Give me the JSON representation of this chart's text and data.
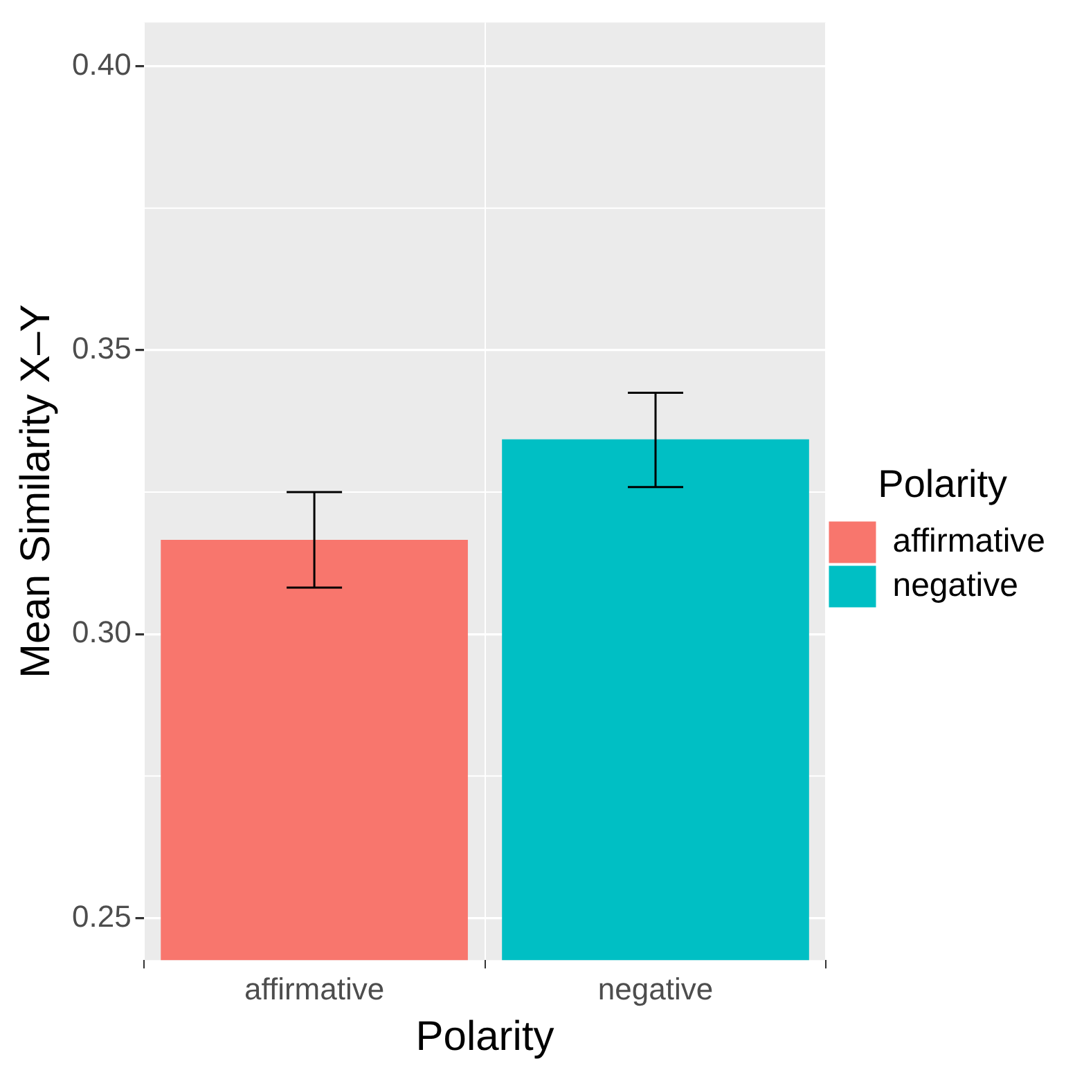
{
  "chart_data": {
    "type": "bar",
    "xlabel": "Polarity",
    "ylabel": "Mean Similarity X–Y",
    "legend_title": "Polarity",
    "categories": [
      "affirmative",
      "negative"
    ],
    "series": [
      {
        "name": "affirmative",
        "color": "#f8766d",
        "values": [
          0.3166,
          null
        ],
        "errors": [
          [
            0.3082,
            0.325
          ],
          null
        ]
      },
      {
        "name": "negative",
        "color": "#00bfc4",
        "values": [
          null,
          0.3343
        ],
        "errors": [
          null,
          [
            0.3259,
            0.3425
          ]
        ]
      }
    ],
    "ylim": [
      0.2426,
      0.4077
    ],
    "yticks": [
      {
        "value": 0.25,
        "label": "0.25"
      },
      {
        "value": 0.3,
        "label": "0.30"
      },
      {
        "value": 0.35,
        "label": "0.35"
      },
      {
        "value": 0.4,
        "label": "0.40"
      }
    ],
    "grid": true,
    "legend": "right"
  }
}
